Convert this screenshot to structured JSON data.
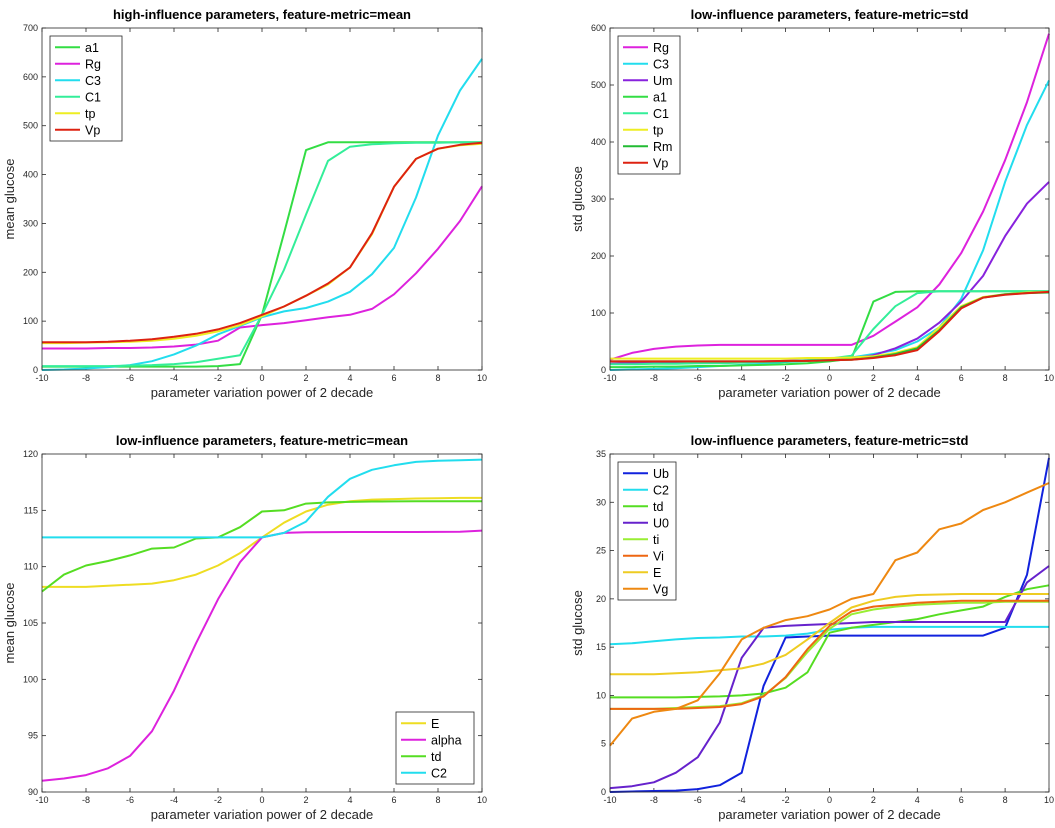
{
  "chart_data": [
    {
      "type": "line",
      "title": "high-influence parameters, feature-metric=mean",
      "xlabel": "parameter variation power of 2 decade",
      "ylabel": "mean glucose",
      "x": [
        -10,
        -9,
        -8,
        -7,
        -6,
        -5,
        -4,
        -3,
        -2,
        -1,
        0,
        1,
        2,
        3,
        4,
        5,
        6,
        7,
        8,
        9,
        10
      ],
      "xlim": [
        -10,
        10
      ],
      "ylim": [
        0,
        700
      ],
      "xticks": [
        "-10",
        "-8",
        "-6",
        "-4",
        "-2",
        "0",
        "2",
        "4",
        "6",
        "8",
        "10"
      ],
      "yticks": [
        "0",
        "100",
        "200",
        "300",
        "400",
        "500",
        "600",
        "700"
      ],
      "legend_position": "top-left",
      "series": [
        {
          "name": "a1",
          "color": "#33dd44",
          "values": [
            7,
            7,
            7,
            7,
            7,
            7,
            7,
            7,
            8,
            12,
            113,
            280,
            450,
            466,
            466,
            466,
            466,
            466,
            466,
            466,
            466
          ]
        },
        {
          "name": "Rg",
          "color": "#dd22dd",
          "values": [
            44,
            44,
            44,
            45,
            45,
            46,
            48,
            52,
            60,
            87,
            92,
            96,
            102,
            108,
            113,
            125,
            155,
            198,
            248,
            305,
            376
          ]
        },
        {
          "name": "C3",
          "color": "#22ddee",
          "values": [
            0,
            1,
            3,
            6,
            10,
            18,
            32,
            50,
            73,
            90,
            108,
            120,
            127,
            140,
            160,
            196,
            250,
            353,
            480,
            572,
            637
          ]
        },
        {
          "name": "C1",
          "color": "#33ee99",
          "values": [
            8,
            8,
            8,
            8,
            9,
            10,
            12,
            16,
            23,
            30,
            113,
            205,
            318,
            428,
            457,
            462,
            464,
            465,
            465,
            466,
            466
          ]
        },
        {
          "name": "tp",
          "color": "#eeee22",
          "values": [
            55,
            55,
            56,
            57,
            58,
            60,
            64,
            70,
            79,
            92,
            110,
            130,
            152,
            175,
            210,
            278,
            375,
            432,
            453,
            460,
            463
          ]
        },
        {
          "name": "Vp",
          "color": "#dd2211",
          "values": [
            57,
            57,
            57,
            58,
            60,
            63,
            68,
            74,
            83,
            96,
            113,
            130,
            152,
            177,
            210,
            280,
            375,
            432,
            453,
            461,
            465
          ]
        }
      ]
    },
    {
      "type": "line",
      "title": "low-influence parameters, feature-metric=std",
      "xlabel": "parameter variation power of 2 decade",
      "ylabel": "std glucose",
      "x": [
        -10,
        -9,
        -8,
        -7,
        -6,
        -5,
        -4,
        -3,
        -2,
        -1,
        0,
        1,
        2,
        3,
        4,
        5,
        6,
        7,
        8,
        9,
        10
      ],
      "xlim": [
        -10,
        10
      ],
      "ylim": [
        0,
        600
      ],
      "xticks": [
        "-10",
        "-8",
        "-6",
        "-4",
        "-2",
        "0",
        "2",
        "4",
        "6",
        "8",
        "10"
      ],
      "yticks": [
        "0",
        "100",
        "200",
        "300",
        "400",
        "500",
        "600"
      ],
      "legend_position": "top-left",
      "series": [
        {
          "name": "Rg",
          "color": "#dd22dd",
          "values": [
            18,
            30,
            37,
            41,
            43,
            44,
            44,
            44,
            44,
            44,
            44,
            44,
            60,
            85,
            110,
            150,
            205,
            278,
            368,
            470,
            590
          ]
        },
        {
          "name": "C3",
          "color": "#22ddee",
          "values": [
            0,
            1,
            2,
            3,
            5,
            7,
            9,
            11,
            14,
            16,
            20,
            22,
            28,
            35,
            50,
            75,
            125,
            210,
            330,
            430,
            508
          ]
        },
        {
          "name": "Um",
          "color": "#8822dd",
          "values": [
            11,
            12,
            12,
            13,
            13,
            14,
            14,
            15,
            16,
            17,
            18,
            20,
            26,
            38,
            55,
            83,
            120,
            165,
            235,
            292,
            330
          ]
        },
        {
          "name": "a1",
          "color": "#33dd44",
          "values": [
            5,
            5,
            6,
            6,
            7,
            7,
            8,
            9,
            10,
            12,
            15,
            20,
            120,
            137,
            138,
            138,
            138,
            138,
            138,
            138,
            138
          ]
        },
        {
          "name": "C1",
          "color": "#33ee99",
          "values": [
            10,
            10,
            11,
            11,
            12,
            12,
            13,
            14,
            15,
            17,
            20,
            25,
            72,
            112,
            135,
            138,
            138,
            138,
            138,
            138,
            138
          ]
        },
        {
          "name": "tp",
          "color": "#eeee22",
          "values": [
            20,
            20,
            20,
            20,
            20,
            20,
            20,
            20,
            20,
            21,
            21,
            22,
            24,
            30,
            40,
            75,
            112,
            128,
            133,
            136,
            137
          ]
        },
        {
          "name": "Rm",
          "color": "#22bb33",
          "values": [
            15,
            15,
            15,
            15,
            15,
            15,
            15,
            15,
            15,
            16,
            17,
            18,
            22,
            28,
            38,
            70,
            110,
            127,
            133,
            135,
            136
          ]
        },
        {
          "name": "Vp",
          "color": "#dd2211",
          "values": [
            15,
            15,
            15,
            15,
            15,
            15,
            15,
            15,
            16,
            16,
            17,
            18,
            21,
            26,
            35,
            68,
            108,
            127,
            132,
            135,
            137
          ]
        }
      ]
    },
    {
      "type": "line",
      "title": "low-influence parameters, feature-metric=mean",
      "xlabel": "parameter variation power of 2 decade",
      "ylabel": "mean glucose",
      "x": [
        -10,
        -9,
        -8,
        -7,
        -6,
        -5,
        -4,
        -3,
        -2,
        -1,
        0,
        1,
        2,
        3,
        4,
        5,
        6,
        7,
        8,
        9,
        10
      ],
      "xlim": [
        -10,
        10
      ],
      "ylim": [
        90,
        120
      ],
      "xticks": [
        "-10",
        "-8",
        "-6",
        "-4",
        "-2",
        "0",
        "2",
        "4",
        "6",
        "8",
        "10"
      ],
      "yticks": [
        "90",
        "95",
        "100",
        "105",
        "110",
        "115",
        "120"
      ],
      "legend_position": "bottom-right",
      "series": [
        {
          "name": "E",
          "color": "#eedd22",
          "values": [
            108.2,
            108.2,
            108.2,
            108.3,
            108.4,
            108.5,
            108.8,
            109.3,
            110.1,
            111.2,
            112.6,
            113.9,
            114.9,
            115.5,
            115.8,
            115.95,
            116.0,
            116.05,
            116.08,
            116.1,
            116.1
          ]
        },
        {
          "name": "alpha",
          "color": "#dd22dd",
          "values": [
            91.0,
            91.2,
            91.5,
            92.1,
            93.2,
            95.4,
            99.0,
            103.2,
            107.1,
            110.4,
            112.6,
            113.0,
            113.05,
            113.07,
            113.08,
            113.08,
            113.08,
            113.08,
            113.09,
            113.1,
            113.2
          ]
        },
        {
          "name": "td",
          "color": "#55dd22",
          "values": [
            107.8,
            109.3,
            110.1,
            110.5,
            111.0,
            111.6,
            111.7,
            112.5,
            112.6,
            113.5,
            114.9,
            115.0,
            115.6,
            115.7,
            115.75,
            115.78,
            115.79,
            115.8,
            115.8,
            115.8,
            115.8
          ]
        },
        {
          "name": "C2",
          "color": "#22ddee",
          "values": [
            112.6,
            112.6,
            112.6,
            112.6,
            112.6,
            112.6,
            112.6,
            112.6,
            112.6,
            112.6,
            112.6,
            113.0,
            114.0,
            116.2,
            117.8,
            118.6,
            119.0,
            119.3,
            119.4,
            119.45,
            119.5
          ]
        }
      ]
    },
    {
      "type": "line",
      "title": "low-influence parameters, feature-metric=std",
      "xlabel": "parameter variation power of 2 decade",
      "ylabel": "std glucose",
      "x": [
        -10,
        -9,
        -8,
        -7,
        -6,
        -5,
        -4,
        -3,
        -2,
        -1,
        0,
        1,
        2,
        3,
        4,
        5,
        6,
        7,
        8,
        9,
        10
      ],
      "xlim": [
        -10,
        10
      ],
      "ylim": [
        0,
        35
      ],
      "xticks": [
        "-10",
        "-8",
        "-6",
        "-4",
        "-2",
        "0",
        "2",
        "4",
        "6",
        "8",
        "10"
      ],
      "yticks": [
        "0",
        "5",
        "10",
        "15",
        "20",
        "25",
        "30",
        "35"
      ],
      "legend_position": "top-left",
      "series": [
        {
          "name": "Ub",
          "color": "#1122dd",
          "values": [
            0.0,
            0.05,
            0.1,
            0.15,
            0.3,
            0.7,
            2.0,
            11.0,
            16.0,
            16.1,
            16.2,
            16.2,
            16.2,
            16.2,
            16.2,
            16.2,
            16.2,
            16.2,
            17.0,
            22.5,
            34.6
          ]
        },
        {
          "name": "C2",
          "color": "#22ddee",
          "values": [
            15.3,
            15.4,
            15.6,
            15.8,
            15.95,
            16.0,
            16.1,
            16.1,
            16.2,
            16.4,
            16.8,
            17.0,
            17.1,
            17.1,
            17.1,
            17.1,
            17.1,
            17.1,
            17.1,
            17.1,
            17.1
          ]
        },
        {
          "name": "td",
          "color": "#55dd22",
          "values": [
            9.8,
            9.8,
            9.8,
            9.8,
            9.85,
            9.9,
            10.0,
            10.2,
            10.8,
            12.4,
            16.5,
            17.0,
            17.3,
            17.6,
            17.9,
            18.4,
            18.8,
            19.2,
            20.2,
            21.0,
            21.4
          ]
        },
        {
          "name": "U0",
          "color": "#6622cc",
          "values": [
            0.4,
            0.6,
            1.0,
            2.0,
            3.6,
            7.2,
            13.9,
            17.0,
            17.2,
            17.3,
            17.4,
            17.5,
            17.6,
            17.6,
            17.6,
            17.6,
            17.6,
            17.6,
            17.6,
            21.7,
            23.4
          ]
        },
        {
          "name": "ti",
          "color": "#99ee33",
          "values": [
            8.6,
            8.6,
            8.6,
            8.7,
            8.8,
            8.9,
            9.2,
            10.0,
            11.8,
            14.5,
            16.9,
            18.4,
            18.9,
            19.2,
            19.4,
            19.5,
            19.6,
            19.6,
            19.7,
            19.7,
            19.7
          ]
        },
        {
          "name": "Vi",
          "color": "#ee6611",
          "values": [
            8.6,
            8.6,
            8.6,
            8.6,
            8.7,
            8.8,
            9.1,
            9.9,
            11.9,
            14.8,
            17.2,
            18.7,
            19.2,
            19.4,
            19.6,
            19.7,
            19.8,
            19.8,
            19.8,
            19.8,
            19.8
          ]
        },
        {
          "name": "E",
          "color": "#eecc22",
          "values": [
            12.2,
            12.2,
            12.2,
            12.3,
            12.4,
            12.6,
            12.8,
            13.3,
            14.2,
            15.8,
            17.5,
            19.1,
            19.8,
            20.2,
            20.4,
            20.45,
            20.5,
            20.5,
            20.5,
            20.5,
            20.5
          ]
        },
        {
          "name": "Vg",
          "color": "#ee8811",
          "values": [
            4.8,
            7.6,
            8.3,
            8.6,
            9.5,
            12.3,
            15.8,
            17.0,
            17.8,
            18.2,
            18.9,
            20.0,
            20.5,
            24.0,
            24.8,
            27.2,
            27.8,
            29.2,
            30.0,
            31.0,
            32.0
          ]
        }
      ]
    }
  ]
}
